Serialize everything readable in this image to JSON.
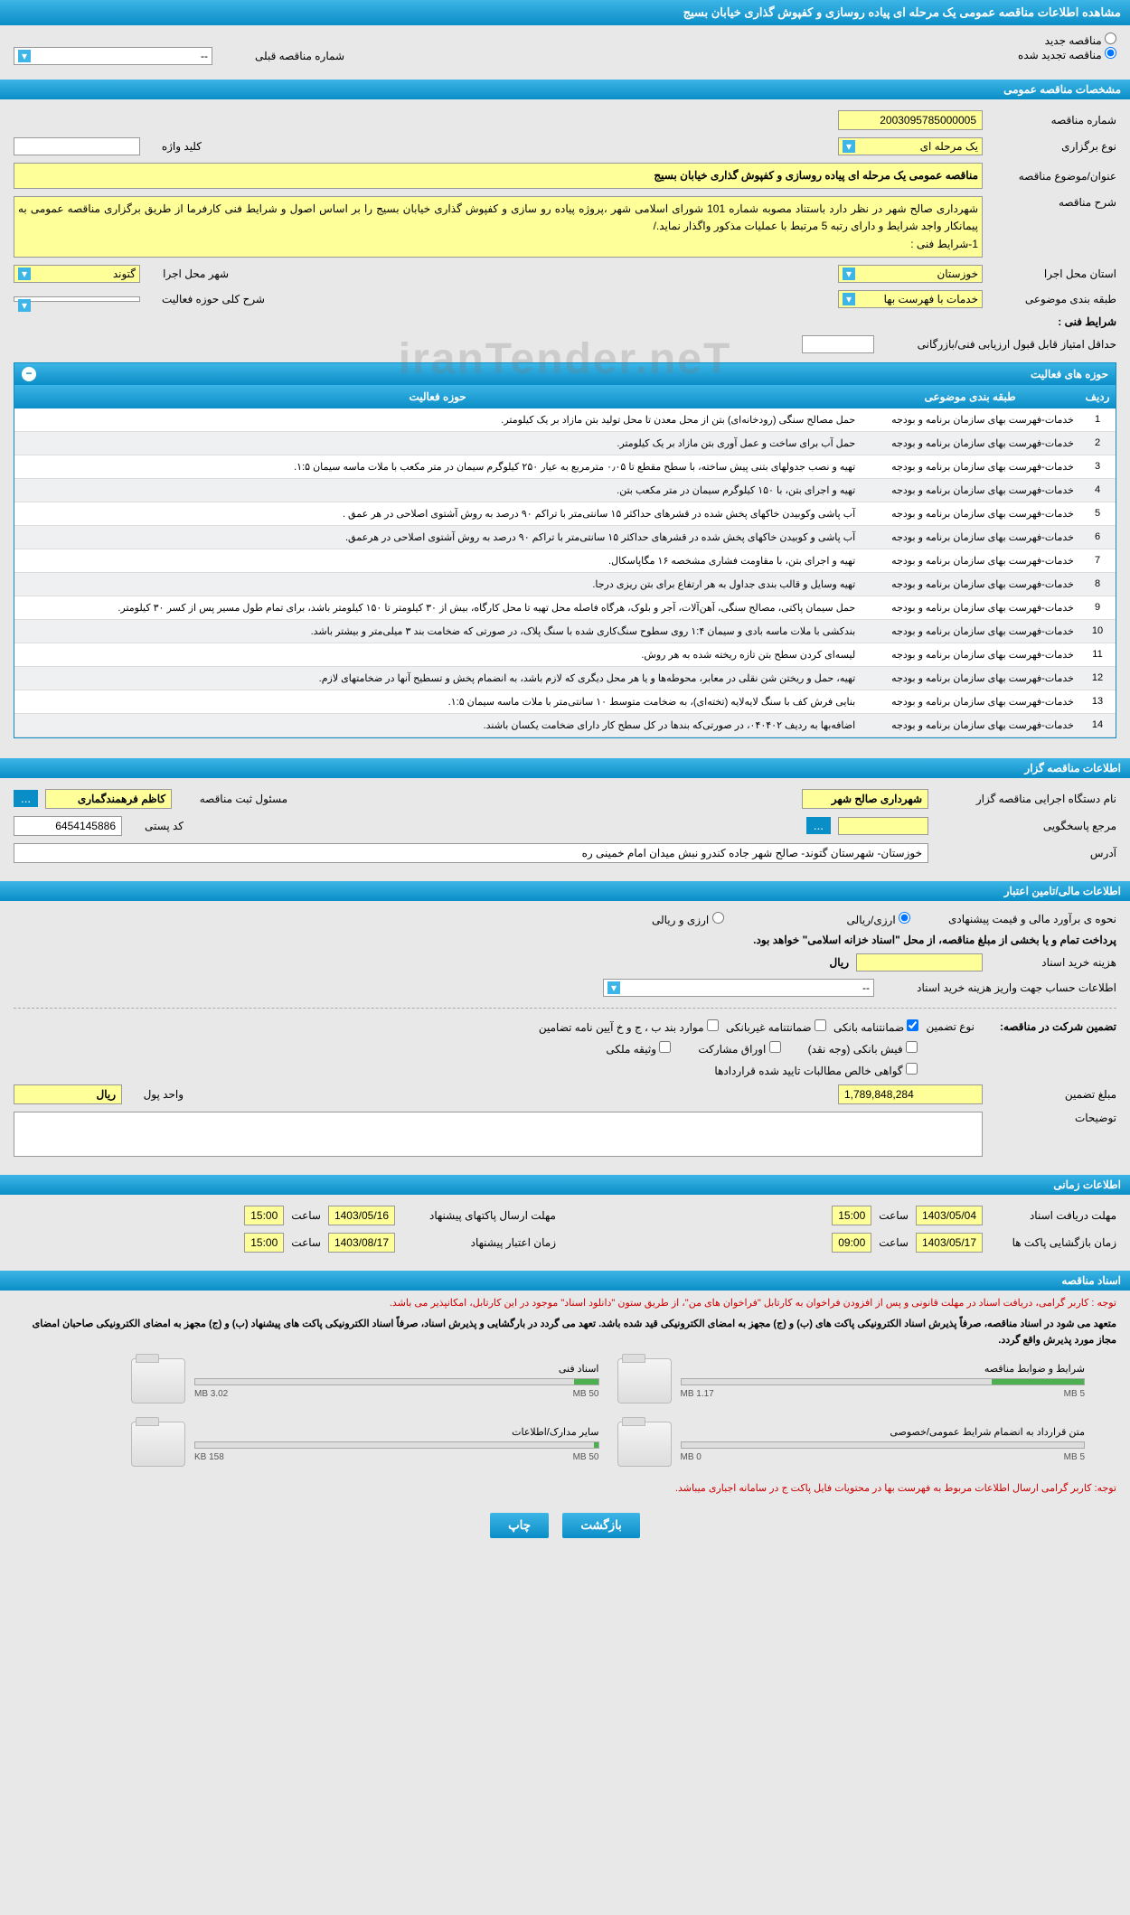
{
  "page_title": "مشاهده اطلاعات مناقصه عمومی یک مرحله ای پیاده روسازی و کفپوش گذاری خیابان بسیج",
  "radios": {
    "new": "مناقصه جدید",
    "renew": "مناقصه تجدید شده"
  },
  "prev_tender_label": "شماره مناقصه قبلی",
  "prev_tender_val": "--",
  "sec_general": "مشخصات مناقصه عمومی",
  "gen": {
    "num_lbl": "شماره مناقصه",
    "num_val": "2003095785000005",
    "type_lbl": "نوع برگزاری",
    "type_val": "یک مرحله ای",
    "keyword_lbl": "کلید واژه",
    "keyword_val": "",
    "subject_lbl": "عنوان/موضوع مناقصه",
    "subject_val": "مناقصه عمومی یک مرحله ای پیاده روسازی و کفپوش گذاری خیابان بسیج",
    "desc_lbl": "شرح مناقصه",
    "desc_val": "شهرداری صالح شهر در نظر دارد باستناد مصوبه شماره 101 شورای اسلامی شهر ،پروژه پیاده رو سازی و کفپوش گذاری خیابان بسیج را بر اساس اصول و شرایط فنی کارفرما از طریق برگزاری مناقصه عمومی به پیمانکار واجد شرایط و دارای رتبه 5 مرتبط با عملیات مذکور واگذار نماید./\n1-شرایط فنی :",
    "province_lbl": "استان محل اجرا",
    "province_val": "خوزستان",
    "city_lbl": "شهر محل اجرا",
    "city_val": "گتوند",
    "cat_lbl": "طبقه بندی موضوعی",
    "cat_val": "خدمات با فهرست بها",
    "scope_lbl": "شرح کلی حوزه فعالیت",
    "scope_val": "",
    "tech_cond_lbl": "شرایط فنی :",
    "min_score_lbl": "حداقل امتیاز قابل قبول ارزیابی فنی/بازرگانی",
    "min_score_val": ""
  },
  "activities_title": "حوزه های فعالیت",
  "activities_cols": {
    "row": "ردیف",
    "cat": "طبقه بندی موضوعی",
    "scope": "حوزه فعالیت"
  },
  "activities_rows": [
    {
      "n": "1",
      "c": "خدمات-فهرست بهای سازمان برنامه و بودجه",
      "s": "حمل مصالح سنگی (رودخانه‌ای) بتن از محل معدن تا محل تولید بتن مازاد بر یک کیلومتر."
    },
    {
      "n": "2",
      "c": "خدمات-فهرست بهای سازمان برنامه و بودجه",
      "s": "حمل آب برای ساخت و عمل آوری بتن مازاد بر یک کیلومتر."
    },
    {
      "n": "3",
      "c": "خدمات-فهرست بهای سازمان برنامه و بودجه",
      "s": "تهیه و نصب جدولهای بتنی پیش ساخته، با سطح مقطع تا ۰٫۰۵ مترمربع به عیار ۲۵۰ کیلوگرم سیمان در متر مکعب با ملات ماسه سیمان ۱:۵."
    },
    {
      "n": "4",
      "c": "خدمات-فهرست بهای سازمان برنامه و بودجه",
      "s": "تهیه و اجرای بتن، با ۱۵۰ کیلوگرم سیمان در متر مکعب بتن."
    },
    {
      "n": "5",
      "c": "خدمات-فهرست بهای سازمان برنامه و بودجه",
      "s": "آب پاشی وکوبیدن خاکهای پخش شده در قشرهای حداکثر ۱۵ سانتی‌متر با تراکم ۹۰ درصد به روش آشتوی اصلاحی در هر عمق ."
    },
    {
      "n": "6",
      "c": "خدمات-فهرست بهای سازمان برنامه و بودجه",
      "s": "آب پاشی و کوبیدن خاکهای پخش شده در قشرهای حداکثر ۱۵ سانتی‌متر با تراکم ۹۰ درصد به روش آشتوی اصلاحی در هرعمق."
    },
    {
      "n": "7",
      "c": "خدمات-فهرست بهای سازمان برنامه و بودجه",
      "s": "تهیه و اجرای بتن، با مقاومت فشاری مشخصه ۱۶ مگاپاسکال."
    },
    {
      "n": "8",
      "c": "خدمات-فهرست بهای سازمان برنامه و بودجه",
      "s": "تهیه وسایل و قالب بندی جداول به هر ارتفاع برای بتن ریزی درجا."
    },
    {
      "n": "9",
      "c": "خدمات-فهرست بهای سازمان برنامه و بودجه",
      "s": "حمل سیمان پاکتی، مصالح سنگی، آهن‌آلات، آجر و بلوک، هرگاه فاصله محل تهیه تا محل کارگاه، بیش از ۳۰ کیلومتر تا ۱۵۰ کیلومتر باشد، برای تمام طول مسیر پس از کسر ۳۰ کیلومتر."
    },
    {
      "n": "10",
      "c": "خدمات-فهرست بهای سازمان برنامه و بودجه",
      "s": "بندکشی با ملات ماسه بادی و سیمان ۱:۴ روی سطوح سنگ‌کاری شده با سنگ پلاک، در صورتی که ضخامت بند ۳ میلی‌متر و بیشتر باشد."
    },
    {
      "n": "11",
      "c": "خدمات-فهرست بهای سازمان برنامه و بودجه",
      "s": "لیسه‌ای کردن سطح بتن تازه ریخته شده به هر روش."
    },
    {
      "n": "12",
      "c": "خدمات-فهرست بهای سازمان برنامه و بودجه",
      "s": "تهیه، حمل و ریختن شن نقلی در معابر، محوطه‌ها و یا هر محل دیگری که لازم باشد، به انضمام پخش و تسطیح آنها در ضخامتهای لازم."
    },
    {
      "n": "13",
      "c": "خدمات-فهرست بهای سازمان برنامه و بودجه",
      "s": "بنایی فرش کف با سنگ لایه‌لایه (تخته‌ای)، به ضخامت متوسط ۱۰ سانتی‌متر با ملات ماسه سیمان ۱:۵."
    },
    {
      "n": "14",
      "c": "خدمات-فهرست بهای سازمان برنامه و بودجه",
      "s": "اضافه‌بها به ردیف ۰۴۰۴۰۲، در صورتی‌که بندها در کل سطح کار دارای ضخامت یکسان باشند."
    }
  ],
  "sec_org": "اطلاعات مناقصه گزار",
  "org": {
    "name_lbl": "نام دستگاه اجرایی مناقصه گزار",
    "name_val": "شهرداری صالح شهر",
    "reg_lbl": "مسئول ثبت مناقصه",
    "reg_val": "کاظم فرهمندگماری",
    "resp_lbl": "مرجع پاسخگویی",
    "resp_val": "",
    "post_lbl": "کد پستی",
    "post_val": "6454145886",
    "addr_lbl": "آدرس",
    "addr_val": "خوزستان- شهرستان گتوند- صالح شهر جاده کندرو نبش میدان امام خمینی ره"
  },
  "sec_fin": "اطلاعات مالی/تامین اعتبار",
  "fin": {
    "est_lbl": "نحوه ی برآورد مالی و قیمت پیشنهادی",
    "opt1": "ارزی/ریالی",
    "opt2": "ارزی و ریالی",
    "note": "پرداخت تمام و یا بخشی از مبلغ مناقصه، از محل \"اسناد خزانه اسلامی\" خواهد بود.",
    "doc_cost_lbl": "هزینه خرید اسناد",
    "doc_cost_val": "",
    "unit": "ریال",
    "acct_lbl": "اطلاعات حساب جهت واریز هزینه خرید اسناد",
    "acct_val": "--"
  },
  "guarantee": {
    "part_lbl": "تضمین شرکت در مناقصه:",
    "type_lbl": "نوع تضمین",
    "g1": "ضمانتنامه بانکی",
    "g2": "ضمانتنامه غیربانکی",
    "g3": "موارد بند ب ، ج و خ آیین نامه تضامین",
    "g4": "فیش بانکی (وجه نقد)",
    "g5": "اوراق مشارکت",
    "g6": "وثیقه ملکی",
    "g7": "گواهی خالص مطالبات تایید شده قراردادها",
    "amt_lbl": "مبلغ تضمین",
    "amt_val": "1,789,848,284",
    "unit_lbl": "واحد پول",
    "unit_val": "ریال",
    "notes_lbl": "توضیحات",
    "notes_val": ""
  },
  "sec_time": "اطلاعات زمانی",
  "time": {
    "recv_lbl": "مهلت دریافت اسناد",
    "recv_d": "1403/05/04",
    "recv_t": "15:00",
    "pkg_lbl": "مهلت ارسال پاکتهای پیشنهاد",
    "pkg_d": "1403/05/16",
    "pkg_t": "15:00",
    "open_lbl": "زمان بازگشایی پاکت ها",
    "open_d": "1403/05/17",
    "open_t": "09:00",
    "valid_lbl": "زمان اعتبار پیشنهاد",
    "valid_d": "1403/08/17",
    "valid_t": "15:00",
    "h_lbl": "ساعت"
  },
  "sec_docs": "اسناد مناقصه",
  "note1": "توجه : کاربر گرامی، دریافت اسناد در مهلت قانونی و پس از افزودن فراخوان به کارتابل \"فراخوان های من\"، از طریق ستون \"دانلود اسناد\" موجود در این کارتابل، امکانپذیر می باشد.",
  "note2": "متعهد می شود در اسناد مناقصه، صرفاً پذیرش اسناد الکترونیکی پاکت های (ب) و (ج) مجهز به امضای الکترونیکی قید شده باشد. تعهد می گردد در بارگشایی و پذیرش اسناد، صرفاً اسناد الکترونیکی پاکت های پیشنهاد (ب) و (ج) مجهز به امضای الکترونیکی صاحبان امضای مجاز مورد پذیرش واقع گردد.",
  "docs": [
    {
      "name": "شرایط و ضوابط مناقصه",
      "cap": "5 MB",
      "used": "1.17 MB",
      "pct": 23
    },
    {
      "name": "اسناد فنی",
      "cap": "50 MB",
      "used": "3.02 MB",
      "pct": 6
    },
    {
      "name": "متن قرارداد به انضمام شرایط عمومی/خصوصی",
      "cap": "5 MB",
      "used": "0 MB",
      "pct": 0
    },
    {
      "name": "سایر مدارک/اطلاعات",
      "cap": "50 MB",
      "used": "158 KB",
      "pct": 1
    }
  ],
  "note3": "توجه: کاربر گرامی ارسال اطلاعات مربوط به فهرست بها در محتویات فایل پاکت ج در سامانه اجباری میباشد.",
  "btns": {
    "back": "بازگشت",
    "print": "چاپ"
  },
  "watermark": "iranTender.neT"
}
